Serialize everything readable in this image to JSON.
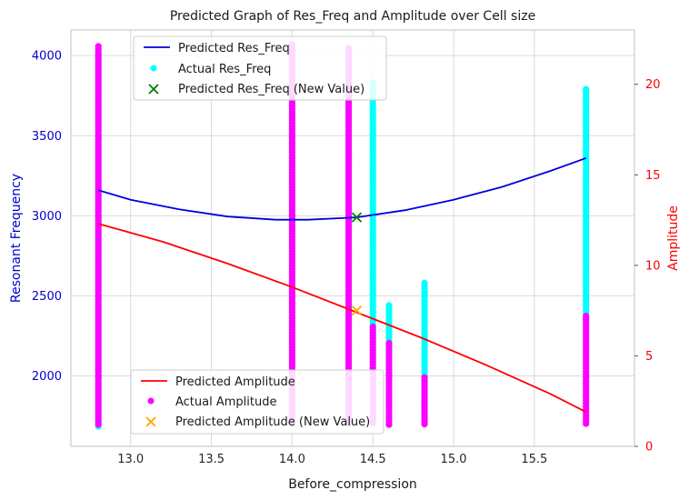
{
  "chart_data": {
    "type": "scatter",
    "title": "Predicted Graph of Res_Freq and Amplitude over Cell size",
    "xlabel": "Before_compression",
    "ylabel_left": "Resonant Frequency",
    "ylabel_right": "Amplitude",
    "xlim": [
      12.63,
      16.12
    ],
    "ylim_left": [
      1560,
      4160
    ],
    "ylim_right": [
      0,
      23
    ],
    "xticks": [
      "13.0",
      "13.5",
      "14.0",
      "14.5",
      "15.0",
      "15.5"
    ],
    "xtick_values": [
      13.0,
      13.5,
      14.0,
      14.5,
      15.0,
      15.5
    ],
    "yticks_left": [
      "2000",
      "2500",
      "3000",
      "3500",
      "4000"
    ],
    "ytick_left_values": [
      2000,
      2500,
      3000,
      3500,
      4000
    ],
    "yticks_right": [
      "0",
      "5",
      "10",
      "15",
      "20"
    ],
    "ytick_right_values": [
      0,
      5,
      10,
      15,
      20
    ],
    "grid": true,
    "colors": {
      "pred_freq": "#0000dd",
      "actual_freq": "#00ffff",
      "new_freq": "#007f00",
      "pred_amp": "#ff0000",
      "actual_amp": "#ff00ff",
      "new_amp": "#ffa500",
      "left_axis_text": "#0000cc",
      "right_axis_text": "#ff0000",
      "grid": "#d9d9d9",
      "frame": "#cccccc"
    },
    "legend_top": {
      "placement": "upper-left",
      "entries": [
        "Predicted Res_Freq",
        "Actual Res_Freq",
        "Predicted Res_Freq (New Value)"
      ]
    },
    "legend_bottom": {
      "placement": "lower-left",
      "entries": [
        "Predicted Amplitude",
        "Actual Amplitude",
        "Predicted Amplitude (New Value)"
      ]
    },
    "series": [
      {
        "name": "Predicted Res_Freq",
        "kind": "line",
        "axis": "left",
        "x": [
          12.8,
          13.0,
          13.3,
          13.6,
          13.9,
          14.1,
          14.4,
          14.7,
          15.0,
          15.3,
          15.6,
          15.82
        ],
        "y": [
          3160,
          3100,
          3040,
          2995,
          2975,
          2975,
          2990,
          3035,
          3100,
          3180,
          3280,
          3360
        ]
      },
      {
        "name": "Actual Res_Freq",
        "kind": "scatter",
        "axis": "left",
        "x_groups": [
          12.8,
          14.0,
          14.35,
          14.5,
          14.6,
          14.82,
          15.82
        ],
        "y_ranges": [
          [
            1680,
            4010
          ],
          [
            1690,
            4010
          ],
          [
            1690,
            4010
          ],
          [
            1690,
            3830
          ],
          [
            1690,
            2440
          ],
          [
            1690,
            2580
          ],
          [
            2340,
            3790
          ]
        ]
      },
      {
        "name": "Predicted Res_Freq (New Value)",
        "kind": "marker",
        "axis": "left",
        "x": [
          14.4
        ],
        "y": [
          2990
        ]
      },
      {
        "name": "Predicted Amplitude",
        "kind": "line",
        "axis": "right",
        "x": [
          12.8,
          13.2,
          13.6,
          14.0,
          14.4,
          14.8,
          15.2,
          15.6,
          15.82
        ],
        "y": [
          12.3,
          11.3,
          10.1,
          8.8,
          7.4,
          6.0,
          4.5,
          2.9,
          1.9
        ]
      },
      {
        "name": "Actual Amplitude",
        "kind": "scatter",
        "axis": "right",
        "x_groups": [
          12.8,
          14.0,
          14.35,
          14.5,
          14.6,
          14.82,
          15.82
        ],
        "y_ranges": [
          [
            1.2,
            22.1
          ],
          [
            1.2,
            22.2
          ],
          [
            1.2,
            22.0
          ],
          [
            1.2,
            6.6
          ],
          [
            1.2,
            5.7
          ],
          [
            1.2,
            3.8
          ],
          [
            1.2,
            7.2
          ]
        ]
      },
      {
        "name": "Predicted Amplitude (New Value)",
        "kind": "marker",
        "axis": "right",
        "x": [
          14.4
        ],
        "y": [
          7.5
        ]
      }
    ]
  }
}
